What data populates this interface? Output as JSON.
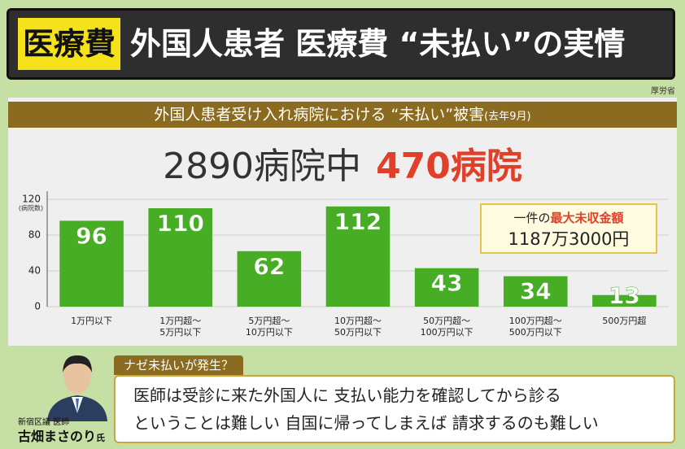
{
  "header": {
    "tag": "医療費",
    "title": "外国人患者 医療費 “未払い”の実情",
    "source": "厚労省"
  },
  "chart_data": {
    "type": "bar",
    "title": "外国人患者受け入れ病院における “未払い”被害",
    "subtitle": "(去年9月)",
    "headline": {
      "total": "2890病院中",
      "highlight": "470病院"
    },
    "ylabel": "(病院数)",
    "categories": [
      "1万円以下",
      "1万円超～\n5万円以下",
      "5万円超～\n10万円以下",
      "10万円超～\n50万円以下",
      "50万円超～\n100万円以下",
      "100万円超～\n500万円以下",
      "500万円超"
    ],
    "values": [
      96,
      110,
      62,
      112,
      43,
      34,
      13
    ],
    "color": "#46ad25",
    "ylim": [
      0,
      120
    ],
    "yticks": [
      0,
      40,
      80,
      120
    ],
    "grid": true,
    "annotation": {
      "prefix": "一件の",
      "label": "最大未収金額",
      "amount": "1187万3000円"
    }
  },
  "comment": {
    "question": "ナゼ未払いが発生？",
    "lines": [
      "医師は受診に来た外国人に 支払い能力を確認してから診る",
      "ということは難しい 自国に帰ってしまえば 請求するのも難しい"
    ],
    "speaker_role": "新宿区議 医師",
    "speaker_name": "古畑まさのり",
    "speaker_suffix": "氏"
  }
}
